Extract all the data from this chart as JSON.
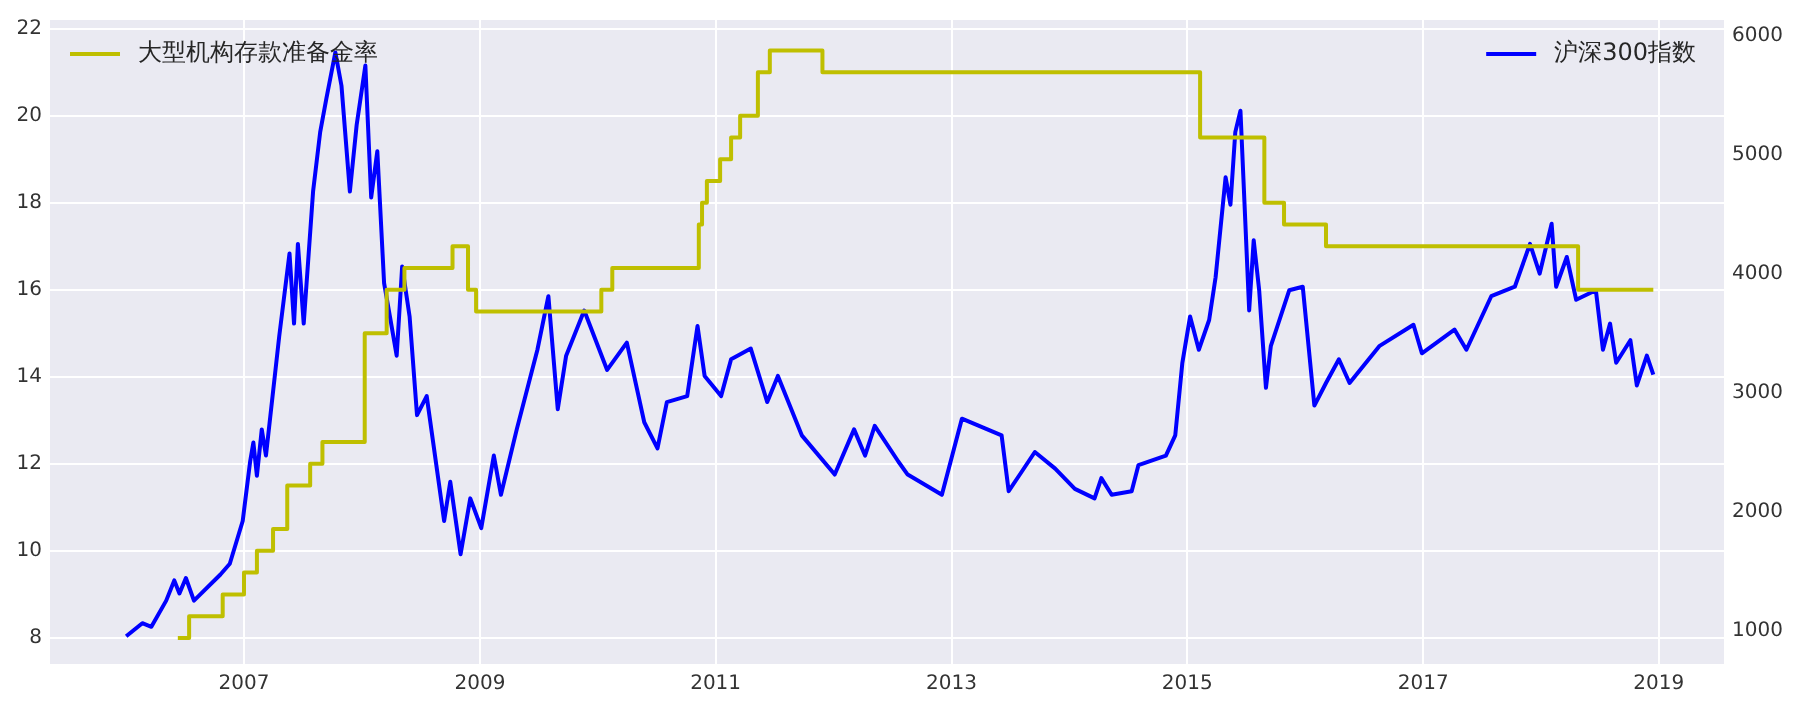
{
  "chart_data": {
    "type": "line",
    "grid": true,
    "legend": "top",
    "xlim": [
      "2005-05-10",
      "2019-07-22"
    ],
    "xticks": [
      "2007",
      "2009",
      "2011",
      "2013",
      "2015",
      "2017",
      "2019"
    ],
    "ylim": [
      7.4,
      22.2
    ],
    "yticks": [
      8,
      10,
      12,
      14,
      16,
      18,
      20,
      22
    ],
    "y2lim": [
      717,
      6133
    ],
    "y2ticks": [
      1000,
      2000,
      3000,
      4000,
      5000,
      6000
    ],
    "series": [
      {
        "name": "大型机构存款准备金率",
        "type": "step",
        "axis": "y",
        "color": "#bfbf00",
        "x": [
          "2006-06-10",
          "2006-07-15",
          "2006-10-27",
          "2007-01-01",
          "2007-02-10",
          "2007-04-01",
          "2007-05-15",
          "2007-07-25",
          "2007-09-01",
          "2008-01-10",
          "2008-03-18",
          "2008-05-12",
          "2008-10-08",
          "2008-11-25",
          "2008-12-20",
          "2010-01-12",
          "2010-02-15",
          "2010-11-10",
          "2010-11-20",
          "2010-12-05",
          "2011-01-15",
          "2011-02-18",
          "2011-03-18",
          "2011-05-12",
          "2011-06-18",
          "2011-11-28",
          "2015-02-10",
          "2015-08-28",
          "2015-10-28",
          "2016-03-06",
          "2018-04-26",
          "2018-12-15"
        ],
        "values": [
          8,
          8.5,
          9,
          9.5,
          10,
          10.5,
          11.5,
          12,
          12.5,
          15,
          16,
          16.5,
          17,
          16,
          15.5,
          16,
          16.5,
          17.5,
          18,
          18.5,
          19,
          19.5,
          20,
          21,
          21.5,
          21,
          19.5,
          18,
          17.5,
          17,
          16,
          16
        ]
      },
      {
        "name": "沪深300指数",
        "type": "line",
        "axis": "y2",
        "color": "#0000ff",
        "x": [
          "2006-01-01",
          "2006-02-20",
          "2006-03-20",
          "2006-05-05",
          "2006-05-30",
          "2006-06-15",
          "2006-07-05",
          "2006-07-30",
          "2006-10-20",
          "2006-11-18",
          "2006-12-28",
          "2007-01-20",
          "2007-01-30",
          "2007-02-10",
          "2007-02-25",
          "2007-03-10",
          "2007-04-20",
          "2007-05-22",
          "2007-06-05",
          "2007-06-17",
          "2007-07-05",
          "2007-08-03",
          "2007-08-25",
          "2007-09-13",
          "2007-10-11",
          "2007-10-30",
          "2007-11-25",
          "2007-12-16",
          "2008-01-12",
          "2008-01-30",
          "2008-02-18",
          "2008-03-10",
          "2008-03-28",
          "2008-04-18",
          "2008-05-05",
          "2008-05-28",
          "2008-06-20",
          "2008-07-20",
          "2008-09-12",
          "2008-10-01",
          "2008-11-02",
          "2008-12-02",
          "2009-01-05",
          "2009-02-13",
          "2009-03-07",
          "2009-04-25",
          "2009-06-28",
          "2009-08-01",
          "2009-08-30",
          "2009-09-25",
          "2009-11-20",
          "2010-01-30",
          "2010-04-01",
          "2010-05-25",
          "2010-07-05",
          "2010-08-03",
          "2010-10-05",
          "2010-11-06",
          "2010-11-28",
          "2011-01-18",
          "2011-02-18",
          "2011-04-20",
          "2011-06-10",
          "2011-07-13",
          "2011-09-25",
          "2012-01-05",
          "2012-03-05",
          "2012-04-08",
          "2012-05-08",
          "2012-07-20",
          "2012-08-18",
          "2012-12-02",
          "2013-02-02",
          "2013-06-05",
          "2013-06-27",
          "2013-09-16",
          "2013-11-18",
          "2014-01-18",
          "2014-03-20",
          "2014-04-10",
          "2014-05-12",
          "2014-07-13",
          "2014-08-03",
          "2014-10-27",
          "2014-11-25",
          "2014-12-17",
          "2015-01-10",
          "2015-02-06",
          "2015-03-10",
          "2015-03-30",
          "2015-04-30",
          "2015-05-15",
          "2015-05-30",
          "2015-06-15",
          "2015-07-12",
          "2015-07-26",
          "2015-08-12",
          "2015-09-02",
          "2015-09-17",
          "2015-11-13",
          "2015-12-25",
          "2016-01-30",
          "2016-03-06",
          "2016-04-15",
          "2016-05-18",
          "2016-08-18",
          "2016-12-02",
          "2016-12-28",
          "2017-04-08",
          "2017-05-15",
          "2017-07-31",
          "2017-10-12",
          "2017-11-28",
          "2017-12-28",
          "2018-02-03",
          "2018-02-17",
          "2018-03-22",
          "2018-04-20",
          "2018-06-20",
          "2018-07-12",
          "2018-08-03",
          "2018-08-22",
          "2018-10-05",
          "2018-10-25",
          "2018-11-25",
          "2018-12-15"
        ],
        "values": [
          950,
          1060,
          1030,
          1250,
          1420,
          1310,
          1440,
          1250,
          1470,
          1560,
          1920,
          2420,
          2580,
          2300,
          2690,
          2470,
          3470,
          4170,
          3580,
          4250,
          3580,
          4690,
          5190,
          5470,
          5860,
          5580,
          4690,
          5250,
          5750,
          4640,
          5030,
          3920,
          3640,
          3310,
          4060,
          3640,
          2810,
          2970,
          1920,
          2250,
          1640,
          2110,
          1860,
          2470,
          2140,
          2690,
          3360,
          3810,
          2860,
          3310,
          3690,
          3190,
          3420,
          2750,
          2530,
          2920,
          2970,
          3560,
          3140,
          2970,
          3280,
          3370,
          2920,
          3140,
          2640,
          2310,
          2690,
          2470,
          2720,
          2420,
          2310,
          2140,
          2780,
          2640,
          2170,
          2500,
          2360,
          2190,
          2110,
          2280,
          2140,
          2170,
          2390,
          2470,
          2640,
          3250,
          3640,
          3360,
          3610,
          3970,
          4810,
          4580,
          5190,
          5370,
          3690,
          4280,
          3860,
          3040,
          3390,
          3860,
          3890,
          2890,
          3080,
          3280,
          3080,
          3390,
          3570,
          3330,
          3530,
          3360,
          3810,
          3890,
          4250,
          4000,
          4420,
          3890,
          4140,
          3780,
          3860,
          3360,
          3580,
          3250,
          3440,
          3060,
          3310,
          3150
        ]
      }
    ]
  }
}
